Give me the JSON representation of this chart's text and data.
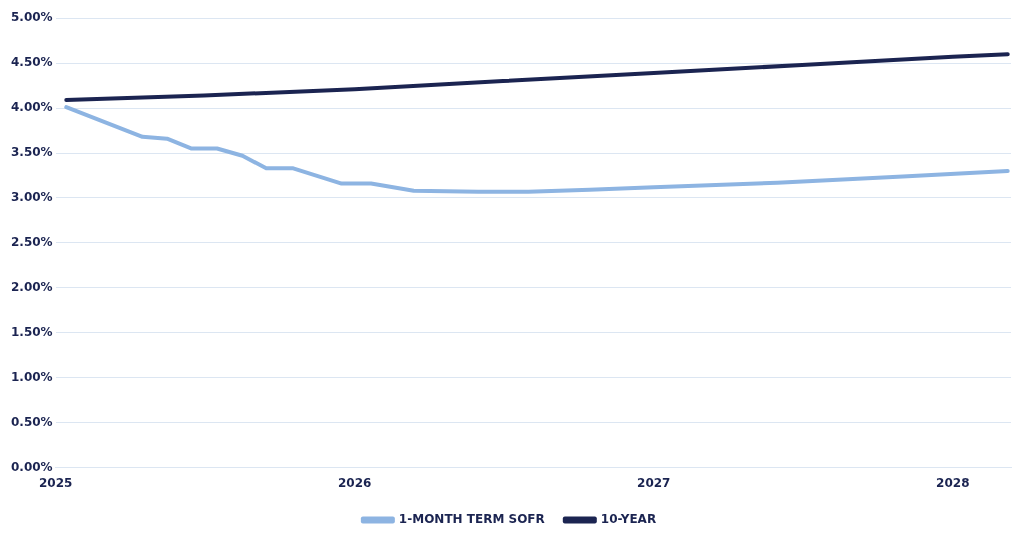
{
  "chart_data": {
    "type": "line",
    "x": [
      "2025-01-14",
      "2025-04-17",
      "2025-05-17",
      "2025-06-16",
      "2025-07-17",
      "2025-08-17",
      "2025-09-15",
      "2025-10-18",
      "2025-12-16",
      "2026-01-21",
      "2026-03-14",
      "2026-06-01",
      "2026-08-01",
      "2026-10-15",
      "2027-01-01",
      "2027-06-01",
      "2027-11-01",
      "2028-03-08"
    ],
    "series": [
      {
        "name": "1-MONTH TERM SOFR",
        "color": "#8db4e2",
        "values": [
          4.01,
          3.68,
          3.66,
          3.55,
          3.55,
          3.47,
          3.33,
          3.33,
          3.16,
          3.16,
          3.08,
          3.07,
          3.07,
          3.09,
          3.12,
          3.17,
          3.24,
          3.3
        ]
      },
      {
        "name": "10-YEAR",
        "color": "#1b2451",
        "x": [
          "2025-01-14",
          "2025-07-01",
          "2026-01-01",
          "2026-07-01",
          "2027-01-01",
          "2027-07-01",
          "2028-01-01",
          "2028-03-08"
        ],
        "values": [
          4.09,
          4.14,
          4.21,
          4.3,
          4.39,
          4.48,
          4.57,
          4.6
        ]
      }
    ],
    "xlim": [
      "2025",
      "2028-03-12"
    ],
    "xticks": [
      "2025",
      "2026",
      "2027",
      "2028"
    ],
    "ylim": [
      0,
      5
    ],
    "yticks": [
      {
        "value": 0,
        "label": "0.00%"
      },
      {
        "value": 0.5,
        "label": "0.50%"
      },
      {
        "value": 1,
        "label": "1.00%"
      },
      {
        "value": 1.5,
        "label": "1.50%"
      },
      {
        "value": 2,
        "label": "2.00%"
      },
      {
        "value": 2.5,
        "label": "2.50%"
      },
      {
        "value": 3,
        "label": "3.00%"
      },
      {
        "value": 3.5,
        "label": "3.50%"
      },
      {
        "value": 4,
        "label": "4.00%"
      },
      {
        "value": 4.5,
        "label": "4.50%"
      },
      {
        "value": 5,
        "label": "5.00%"
      }
    ],
    "grid": "y",
    "legend": "bottom",
    "marker": "none",
    "line_style": "solid"
  }
}
